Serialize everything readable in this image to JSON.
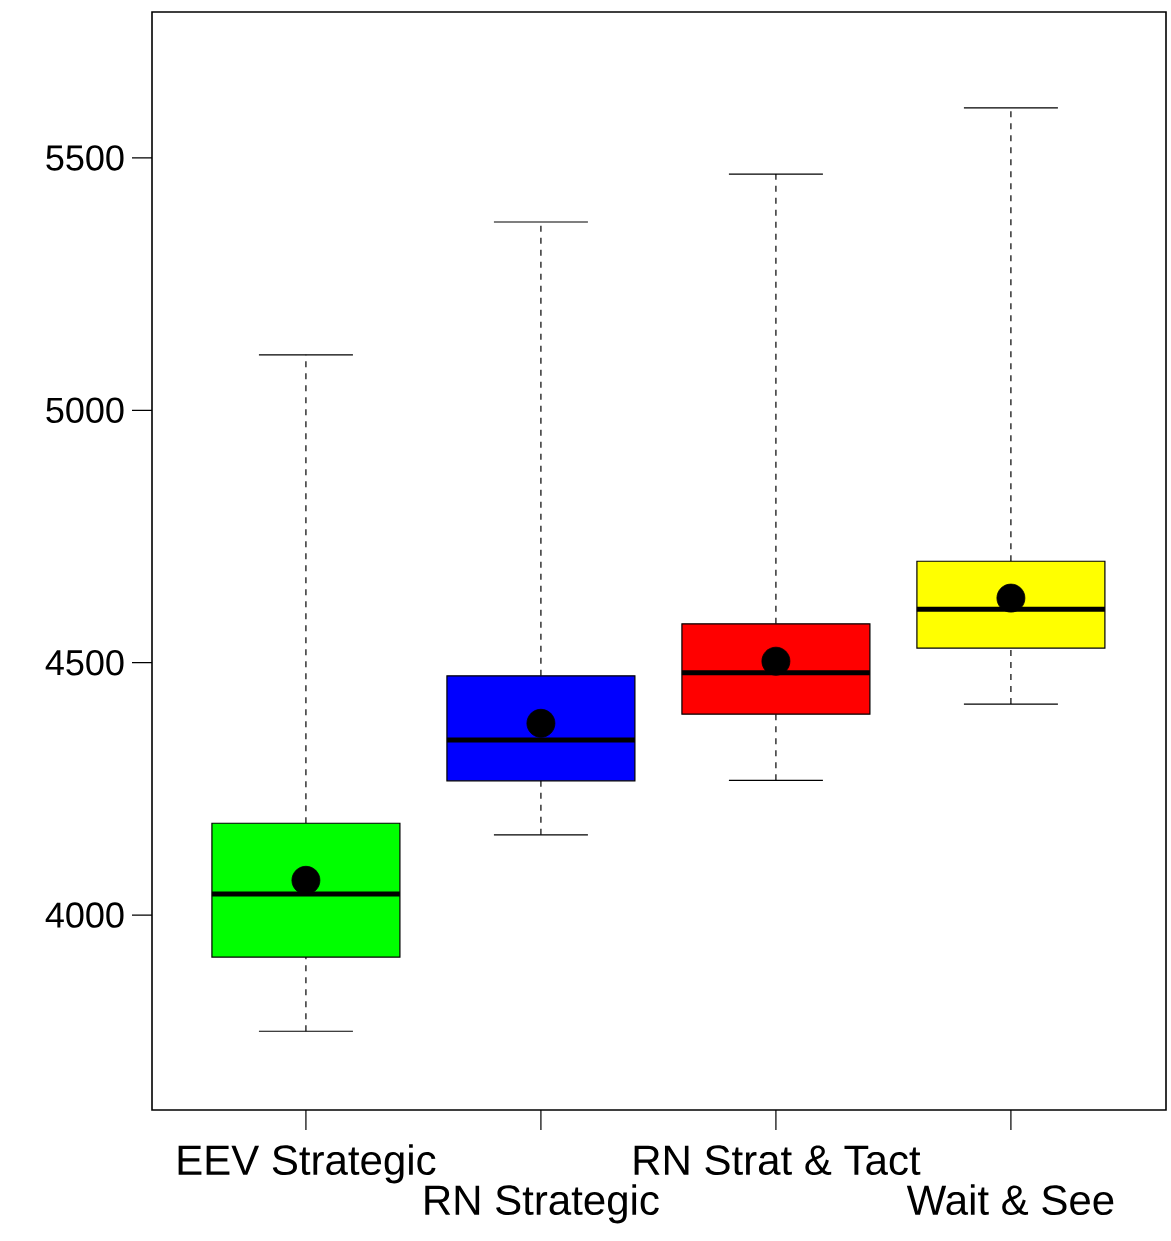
{
  "chart_data": {
    "type": "box",
    "categories": [
      "EEV Strategic",
      "RN Strategic",
      "RN Strat & Tact",
      "Wait & See"
    ],
    "colors": [
      "#00ff00",
      "#0000ff",
      "#ff0000",
      "#ffff00"
    ],
    "boxes": [
      {
        "low": 3770,
        "q1": 3917,
        "median": 4042,
        "q3": 4182,
        "high": 5110,
        "mean": 4069
      },
      {
        "low": 4159,
        "q1": 4266,
        "median": 4347,
        "q3": 4474,
        "high": 5373,
        "mean": 4380
      },
      {
        "low": 4267,
        "q1": 4398,
        "median": 4480,
        "q3": 4577,
        "high": 5468,
        "mean": 4503
      },
      {
        "low": 4418,
        "q1": 4529,
        "median": 4606,
        "q3": 4701,
        "high": 5599,
        "mean": 4628
      }
    ],
    "ylim": [
      3614,
      5789
    ],
    "yticks": [
      4000,
      4500,
      5000,
      5500
    ],
    "grid": false
  }
}
